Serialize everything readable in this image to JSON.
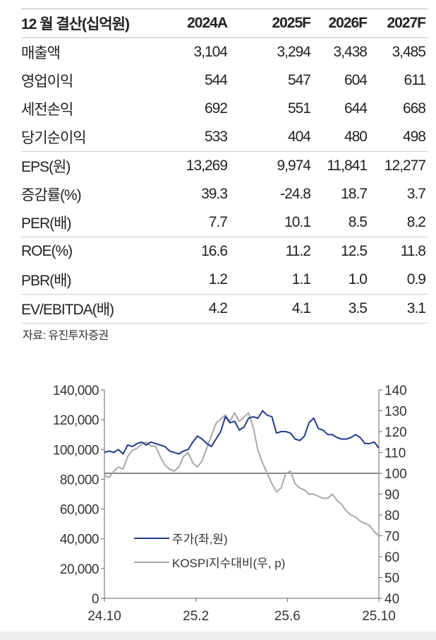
{
  "table": {
    "header": [
      "12 월 결산(십억원)",
      "2024A",
      "2025F",
      "2026F",
      "2027F"
    ],
    "groups": [
      [
        {
          "label": "매출액",
          "values": [
            "3,104",
            "3,294",
            "3,438",
            "3,485"
          ]
        },
        {
          "label": "영업이익",
          "values": [
            "544",
            "547",
            "604",
            "611"
          ]
        },
        {
          "label": "세전손익",
          "values": [
            "692",
            "551",
            "644",
            "668"
          ]
        },
        {
          "label": "당기순이익",
          "values": [
            "533",
            "404",
            "480",
            "498"
          ]
        }
      ],
      [
        {
          "label": "EPS(원)",
          "values": [
            "13,269",
            "9,974",
            "11,841",
            "12,277"
          ]
        },
        {
          "label": "증감률(%)",
          "values": [
            "39.3",
            "-24.8",
            "18.7",
            "3.7"
          ]
        },
        {
          "label": "PER(배)",
          "values": [
            "7.7",
            "10.1",
            "8.5",
            "8.2"
          ]
        }
      ],
      [
        {
          "label": "ROE(%)",
          "values": [
            "16.6",
            "11.2",
            "12.5",
            "11.8"
          ]
        },
        {
          "label": "PBR(배)",
          "values": [
            "1.2",
            "1.1",
            "1.0",
            "0.9"
          ]
        }
      ],
      [
        {
          "label": "EV/EBITDA(배)",
          "values": [
            "4.2",
            "4.1",
            "3.5",
            "3.1"
          ]
        }
      ]
    ],
    "source": "자료: 유진투자증권"
  },
  "chart_data": {
    "type": "line",
    "x_tick_labels": [
      "24.10",
      "25.2",
      "25.6",
      "25.10"
    ],
    "x_tick_positions": [
      0,
      4,
      8,
      12
    ],
    "x_range_months": [
      0,
      12
    ],
    "y_left": {
      "min": 0,
      "max": 140000,
      "ticks": [
        "0",
        "20,000",
        "40,000",
        "60,000",
        "80,000",
        "100,000",
        "120,000",
        "140,000"
      ]
    },
    "y_right": {
      "min": 40,
      "max": 140,
      "ticks": [
        "40",
        "50",
        "60",
        "70",
        "80",
        "90",
        "100",
        "110",
        "120",
        "130",
        "140"
      ]
    },
    "reference_line_right": 100,
    "legend_position": "lower-left",
    "colors": {
      "price": "#1f3a93",
      "relative": "#a8a8a8",
      "ref": "#888888"
    },
    "series": [
      {
        "name": "주가(좌,원)",
        "axis": "left",
        "values": [
          98000,
          99000,
          98000,
          100000,
          97000,
          103000,
          102000,
          104000,
          105000,
          103000,
          105000,
          104000,
          103000,
          102000,
          99000,
          98000,
          97000,
          99000,
          100000,
          105000,
          109000,
          107000,
          104000,
          102000,
          107000,
          112000,
          122000,
          118000,
          119000,
          113000,
          115000,
          121000,
          122000,
          121000,
          126000,
          123000,
          122000,
          111000,
          112000,
          112000,
          111000,
          107000,
          106000,
          109000,
          118000,
          121000,
          114000,
          113000,
          110000,
          110000,
          108000,
          107000,
          107000,
          108000,
          110000,
          108000,
          104000,
          104000,
          105000,
          101000
        ]
      },
      {
        "name": "KOSPI지수대비(우, p)",
        "axis": "right",
        "values": [
          99,
          98,
          101,
          103,
          102,
          108,
          111,
          112,
          114,
          115,
          113,
          113,
          108,
          104,
          102,
          101,
          103,
          108,
          110,
          105,
          103,
          106,
          112,
          118,
          124,
          126,
          128,
          125,
          129,
          125,
          127,
          129,
          122,
          111,
          105,
          100,
          95,
          91,
          93,
          100,
          101,
          95,
          93,
          92,
          90,
          90,
          89,
          88,
          88,
          90,
          87,
          85,
          82,
          80,
          79,
          77,
          76,
          75,
          72,
          70
        ]
      }
    ]
  }
}
